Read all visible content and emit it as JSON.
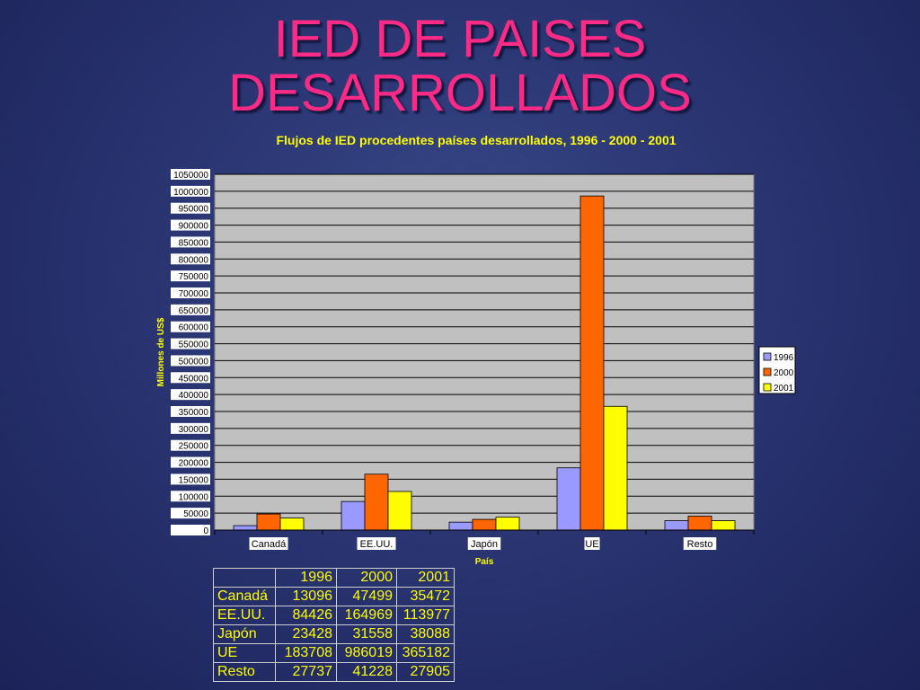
{
  "slide": {
    "title_line1": "IED DE PAISES",
    "title_line2": "DESARROLLADOS"
  },
  "chart_data": {
    "type": "bar",
    "title": "Flujos de IED procedentes países desarrollados, 1996 - 2000 - 2001",
    "xlabel": "País",
    "ylabel": "Millones de US$",
    "categories": [
      "Canadá",
      "EE.UU.",
      "Japón",
      "UE",
      "Resto"
    ],
    "series": [
      {
        "name": "1996",
        "color": "#9999ff",
        "values": [
          13096,
          84426,
          23428,
          183708,
          27737
        ]
      },
      {
        "name": "2000",
        "color": "#ff6600",
        "values": [
          47499,
          164969,
          31558,
          986019,
          41228
        ]
      },
      {
        "name": "2001",
        "color": "#ffff00",
        "values": [
          35472,
          113977,
          38088,
          365182,
          27905
        ]
      }
    ],
    "ylim": [
      0,
      1050000
    ],
    "ytick_step": 50000,
    "grid": true,
    "legend": "right"
  },
  "table": {
    "header": [
      "",
      "1996",
      "2000",
      "2001"
    ],
    "rows": [
      [
        "Canadá",
        "13096",
        "47499",
        "35472"
      ],
      [
        "EE.UU.",
        "84426",
        "164969",
        "113977"
      ],
      [
        "Japón",
        "23428",
        "31558",
        "38088"
      ],
      [
        "UE",
        "183708",
        "986019",
        "365182"
      ],
      [
        "Resto",
        "27737",
        "41228",
        "27905"
      ]
    ]
  }
}
